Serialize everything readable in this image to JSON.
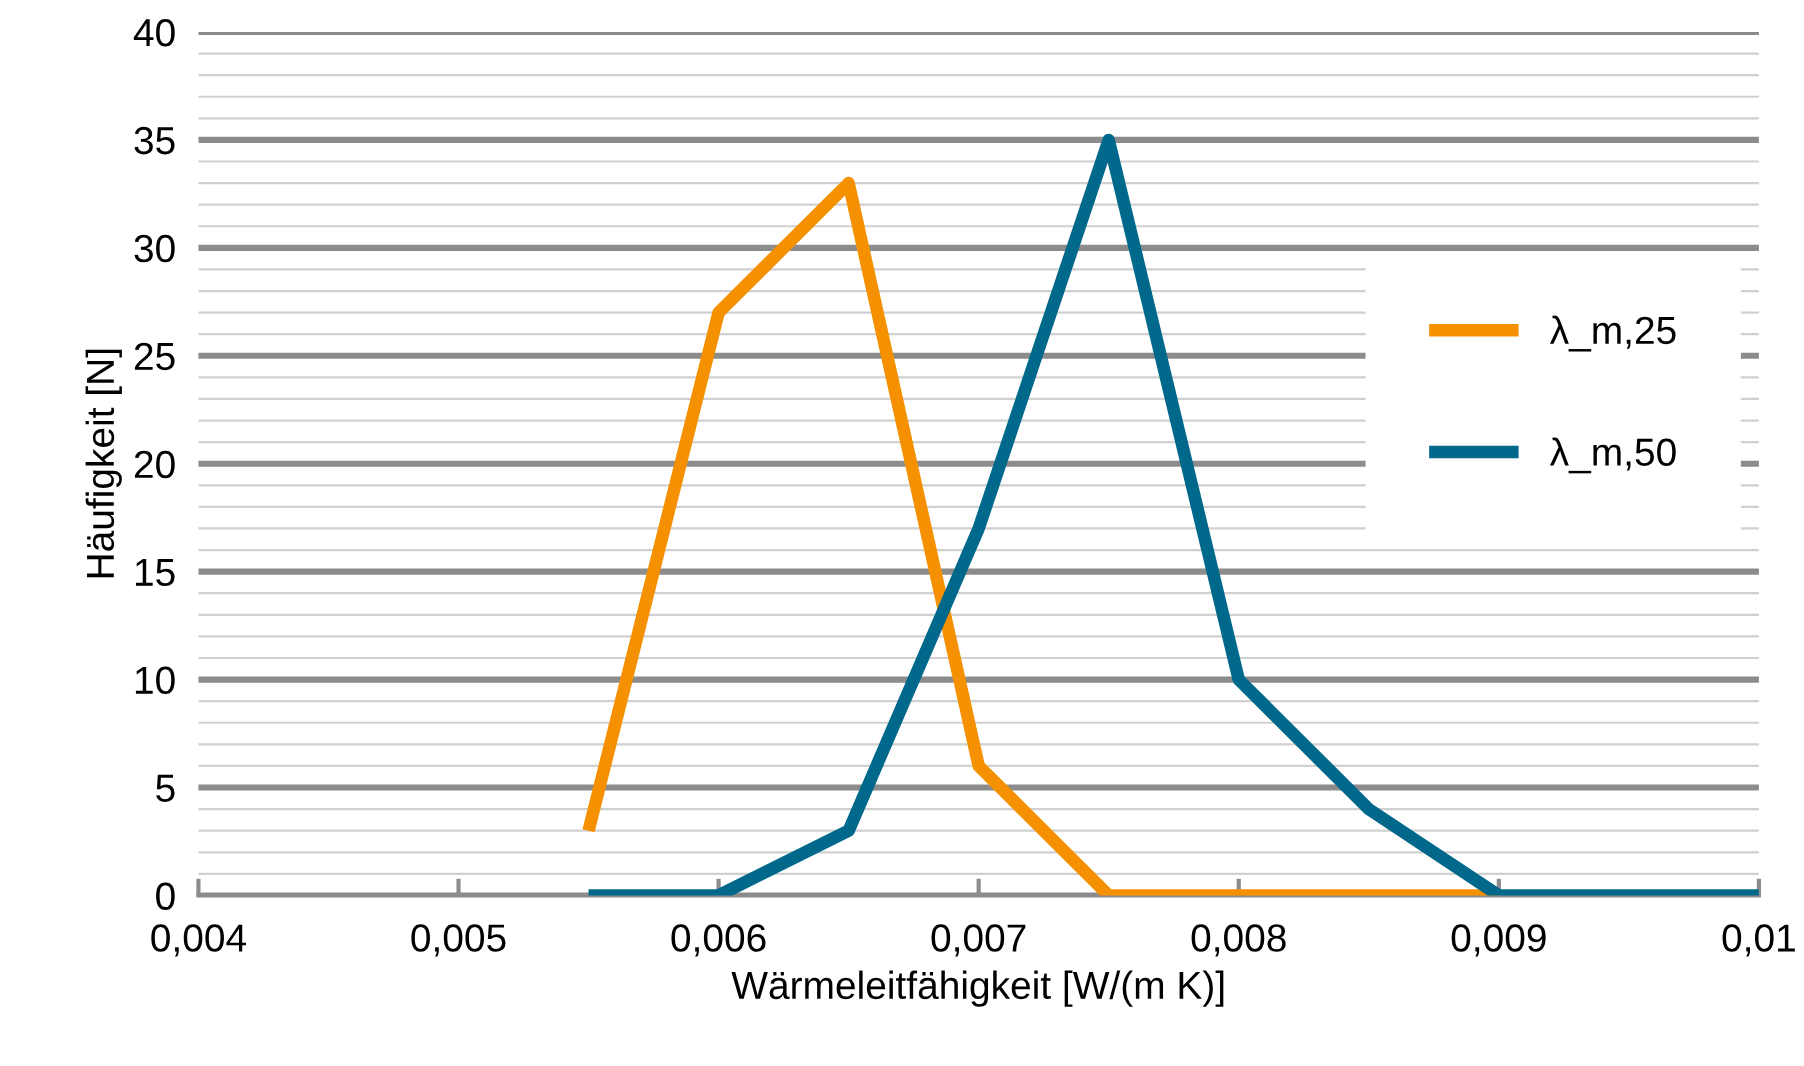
{
  "chart_data": {
    "type": "line",
    "xlabel": "Wärmeleitfähigkeit [W/(m K)]",
    "ylabel": "Häufigkeit [N]",
    "series": [
      {
        "name": "λ_m,25",
        "color": "#f59100",
        "x": [
          0.0055,
          0.006,
          0.0065,
          0.007,
          0.0075,
          0.008,
          0.0085,
          0.009
        ],
        "values": [
          3,
          27,
          33,
          6,
          0,
          0,
          0,
          0
        ]
      },
      {
        "name": "λ_m,50",
        "color": "#00688b",
        "x": [
          0.0055,
          0.006,
          0.0065,
          0.007,
          0.0075,
          0.008,
          0.0085,
          0.009,
          0.0095,
          0.01
        ],
        "values": [
          0,
          0,
          3,
          17,
          35,
          10,
          4,
          0,
          0,
          0
        ]
      }
    ],
    "xlim": [
      0.004,
      0.01
    ],
    "xticks": [
      {
        "value": 0.004,
        "label": "0,004"
      },
      {
        "value": 0.005,
        "label": "0,005"
      },
      {
        "value": 0.006,
        "label": "0,006"
      },
      {
        "value": 0.007,
        "label": "0,007"
      },
      {
        "value": 0.008,
        "label": "0,008"
      },
      {
        "value": 0.009,
        "label": "0,009"
      },
      {
        "value": 0.01,
        "label": "0,01"
      }
    ],
    "ylim": [
      0,
      40
    ],
    "yticks": [
      0,
      {
        "value": 1,
        "label": null
      },
      {
        "value": 2,
        "label": null
      },
      {
        "value": 3,
        "label": null
      },
      {
        "value": 4,
        "label": null
      },
      5,
      {
        "value": 6,
        "label": null
      },
      {
        "value": 7,
        "label": null
      },
      {
        "value": 8,
        "label": null
      },
      {
        "value": 9,
        "label": null
      },
      10,
      {
        "value": 11,
        "label": null
      },
      {
        "value": 12,
        "label": null
      },
      {
        "value": 13,
        "label": null
      },
      {
        "value": 14,
        "label": null
      },
      15,
      {
        "value": 16,
        "label": null
      },
      {
        "value": 17,
        "label": null
      },
      {
        "value": 18,
        "label": null
      },
      {
        "value": 19,
        "label": null
      },
      20,
      {
        "value": 21,
        "label": null
      },
      {
        "value": 22,
        "label": null
      },
      {
        "value": 23,
        "label": null
      },
      {
        "value": 24,
        "label": null
      },
      25,
      {
        "value": 26,
        "label": null
      },
      {
        "value": 27,
        "label": null
      },
      {
        "value": 28,
        "label": null
      },
      {
        "value": 29,
        "label": null
      },
      30,
      {
        "value": 31,
        "label": null
      },
      {
        "value": 32,
        "label": null
      },
      {
        "value": 33,
        "label": null
      },
      {
        "value": 34,
        "label": null
      },
      35,
      {
        "value": 36,
        "label": null
      },
      {
        "value": 37,
        "label": null
      },
      {
        "value": 38,
        "label": null
      },
      {
        "value": 39,
        "label": null
      },
      40
    ],
    "grid": "y",
    "legend": "right",
    "marker": "none",
    "line_style": "solid"
  }
}
